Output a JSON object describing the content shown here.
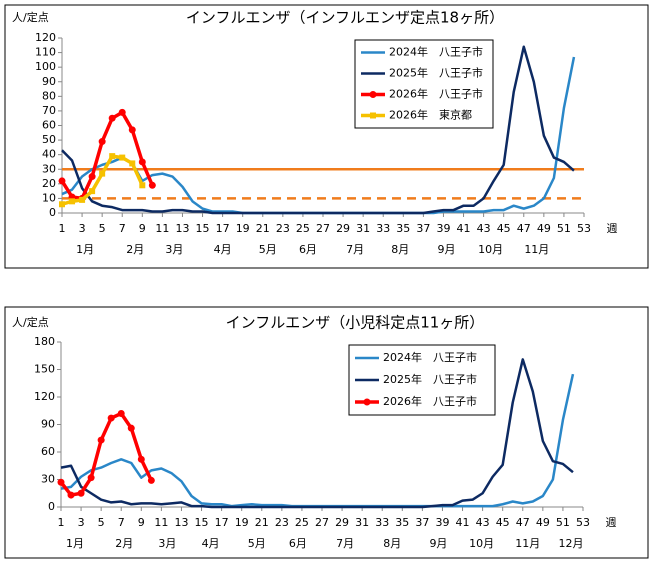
{
  "chart_data": [
    {
      "type": "line",
      "title": "インフルエンザ（インフルエンザ定点18ヶ所）",
      "ylabel": "人/定点",
      "xlabel": "週",
      "x": [
        1,
        2,
        3,
        4,
        5,
        6,
        7,
        8,
        9,
        10,
        11,
        12,
        13,
        14,
        15,
        16,
        17,
        18,
        19,
        20,
        21,
        22,
        23,
        24,
        25,
        26,
        27,
        28,
        29,
        30,
        31,
        32,
        33,
        34,
        35,
        36,
        37,
        38,
        39,
        40,
        41,
        42,
        43,
        44,
        45,
        46,
        47,
        48,
        49,
        50,
        51,
        52
      ],
      "xlim": [
        1,
        53
      ],
      "xticks": [
        1,
        3,
        5,
        7,
        9,
        11,
        13,
        15,
        17,
        19,
        21,
        23,
        25,
        27,
        29,
        31,
        33,
        35,
        37,
        39,
        41,
        43,
        45,
        47,
        49,
        51,
        53
      ],
      "month_ticks": [
        {
          "value": 3.3,
          "label": "1月"
        },
        {
          "value": 8.3,
          "label": "2月"
        },
        {
          "value": 12.2,
          "label": "3月"
        },
        {
          "value": 17,
          "label": "4月"
        },
        {
          "value": 21.5,
          "label": "5月"
        },
        {
          "value": 25.5,
          "label": "6月"
        },
        {
          "value": 30.2,
          "label": "7月"
        },
        {
          "value": 34.7,
          "label": "8月"
        },
        {
          "value": 39.3,
          "label": "9月"
        },
        {
          "value": 43.7,
          "label": "10月"
        },
        {
          "value": 48.3,
          "label": "11月"
        }
      ],
      "ylim": [
        0,
        120
      ],
      "yticks": [
        0,
        10,
        20,
        30,
        40,
        50,
        60,
        70,
        80,
        90,
        100,
        110,
        120
      ],
      "grid": false,
      "legend": "upper-right",
      "reference_lines": [
        {
          "value": 30,
          "color": "#f07c1c",
          "style": "solid"
        },
        {
          "value": 10,
          "color": "#f07c1c",
          "style": "dashed"
        }
      ],
      "series": [
        {
          "name": "2024年　八王子市",
          "color": "#2a87c8",
          "marker": null,
          "values": [
            13,
            16,
            25,
            30,
            33,
            35,
            38,
            34,
            22,
            26,
            27,
            25,
            18,
            8,
            3,
            1,
            1,
            1,
            0,
            0,
            0,
            0,
            0,
            0,
            0,
            0,
            0,
            0,
            0,
            0,
            0,
            0,
            0,
            0,
            0,
            0,
            0,
            0,
            1,
            1,
            1,
            1,
            1,
            2,
            2,
            5,
            3,
            5,
            10,
            24,
            72,
            107
          ]
        },
        {
          "name": "2025年　八王子市",
          "color": "#0d2a62",
          "marker": null,
          "values": [
            43,
            36,
            17,
            8,
            5,
            4,
            2,
            2,
            2,
            1,
            1,
            2,
            2,
            1,
            1,
            0,
            0,
            0,
            0,
            0,
            0,
            0,
            0,
            0,
            0,
            0,
            0,
            0,
            0,
            0,
            0,
            0,
            0,
            0,
            0,
            0,
            0,
            1,
            2,
            2,
            5,
            5,
            10,
            22,
            33,
            83,
            114,
            90,
            53,
            38,
            35,
            29
          ]
        },
        {
          "name": "2026年　八王子市",
          "color": "#ff0000",
          "marker": "circle",
          "values": [
            22,
            11,
            10,
            25,
            49,
            65,
            69,
            57,
            35,
            19,
            null,
            null,
            null,
            null,
            null,
            null,
            null,
            null,
            null,
            null,
            null,
            null,
            null,
            null,
            null,
            null,
            null,
            null,
            null,
            null,
            null,
            null,
            null,
            null,
            null,
            null,
            null,
            null,
            null,
            null,
            null,
            null,
            null,
            null,
            null,
            null,
            null,
            null,
            null,
            null,
            null,
            null
          ]
        },
        {
          "name": "2026年　東京都",
          "color": "#f6c100",
          "marker": "square",
          "values": [
            6,
            8,
            9,
            15,
            27,
            39,
            38,
            34,
            19,
            null,
            null,
            null,
            null,
            null,
            null,
            null,
            null,
            null,
            null,
            null,
            null,
            null,
            null,
            null,
            null,
            null,
            null,
            null,
            null,
            null,
            null,
            null,
            null,
            null,
            null,
            null,
            null,
            null,
            null,
            null,
            null,
            null,
            null,
            null,
            null,
            null,
            null,
            null,
            null,
            null,
            null,
            null
          ]
        }
      ]
    },
    {
      "type": "line",
      "title": "インフルエンザ（小児科定点11ヶ所）",
      "ylabel": "人/定点",
      "xlabel": "週",
      "x": [
        1,
        2,
        3,
        4,
        5,
        6,
        7,
        8,
        9,
        10,
        11,
        12,
        13,
        14,
        15,
        16,
        17,
        18,
        19,
        20,
        21,
        22,
        23,
        24,
        25,
        26,
        27,
        28,
        29,
        30,
        31,
        32,
        33,
        34,
        35,
        36,
        37,
        38,
        39,
        40,
        41,
        42,
        43,
        44,
        45,
        46,
        47,
        48,
        49,
        50,
        51,
        52
      ],
      "xlim": [
        1,
        53
      ],
      "xticks": [
        1,
        3,
        5,
        7,
        9,
        11,
        13,
        15,
        17,
        19,
        21,
        23,
        25,
        27,
        29,
        31,
        33,
        35,
        37,
        39,
        41,
        43,
        45,
        47,
        49,
        51,
        53
      ],
      "month_ticks": [
        {
          "value": 2.4,
          "label": "1月"
        },
        {
          "value": 7.3,
          "label": "2月"
        },
        {
          "value": 11.6,
          "label": "3月"
        },
        {
          "value": 15.9,
          "label": "4月"
        },
        {
          "value": 20.5,
          "label": "5月"
        },
        {
          "value": 24.6,
          "label": "6月"
        },
        {
          "value": 29.3,
          "label": "7月"
        },
        {
          "value": 34,
          "label": "8月"
        },
        {
          "value": 38.6,
          "label": "9月"
        },
        {
          "value": 42.9,
          "label": "10月"
        },
        {
          "value": 47.5,
          "label": "11月"
        },
        {
          "value": 51.8,
          "label": "12月"
        }
      ],
      "ylim": [
        0,
        180
      ],
      "yticks": [
        0,
        30,
        60,
        90,
        120,
        150,
        180
      ],
      "grid": false,
      "legend": "upper-right",
      "series": [
        {
          "name": "2024年　八王子市",
          "color": "#2a87c8",
          "marker": null,
          "values": [
            20,
            22,
            33,
            40,
            43,
            48,
            52,
            48,
            32,
            40,
            42,
            37,
            28,
            12,
            4,
            3,
            3,
            1,
            2,
            3,
            2,
            2,
            2,
            1,
            1,
            1,
            1,
            1,
            1,
            1,
            1,
            1,
            1,
            1,
            1,
            1,
            1,
            1,
            1,
            1,
            1,
            1,
            1,
            1,
            3,
            6,
            4,
            6,
            12,
            30,
            95,
            145
          ]
        },
        {
          "name": "2025年　八王子市",
          "color": "#0d2a62",
          "marker": null,
          "values": [
            43,
            45,
            22,
            15,
            8,
            5,
            6,
            3,
            4,
            4,
            3,
            4,
            5,
            1,
            1,
            0,
            0,
            0,
            0,
            0,
            0,
            0,
            0,
            0,
            0,
            0,
            0,
            0,
            0,
            0,
            0,
            0,
            0,
            0,
            0,
            0,
            0,
            1,
            2,
            2,
            7,
            8,
            15,
            33,
            46,
            114,
            161,
            126,
            72,
            50,
            47,
            38
          ]
        },
        {
          "name": "2026年　八王子市",
          "color": "#ff0000",
          "marker": "circle",
          "values": [
            27,
            13,
            15,
            32,
            73,
            97,
            102,
            86,
            52,
            29,
            null,
            null,
            null,
            null,
            null,
            null,
            null,
            null,
            null,
            null,
            null,
            null,
            null,
            null,
            null,
            null,
            null,
            null,
            null,
            null,
            null,
            null,
            null,
            null,
            null,
            null,
            null,
            null,
            null,
            null,
            null,
            null,
            null,
            null,
            null,
            null,
            null,
            null,
            null,
            null,
            null,
            null
          ]
        }
      ]
    }
  ]
}
